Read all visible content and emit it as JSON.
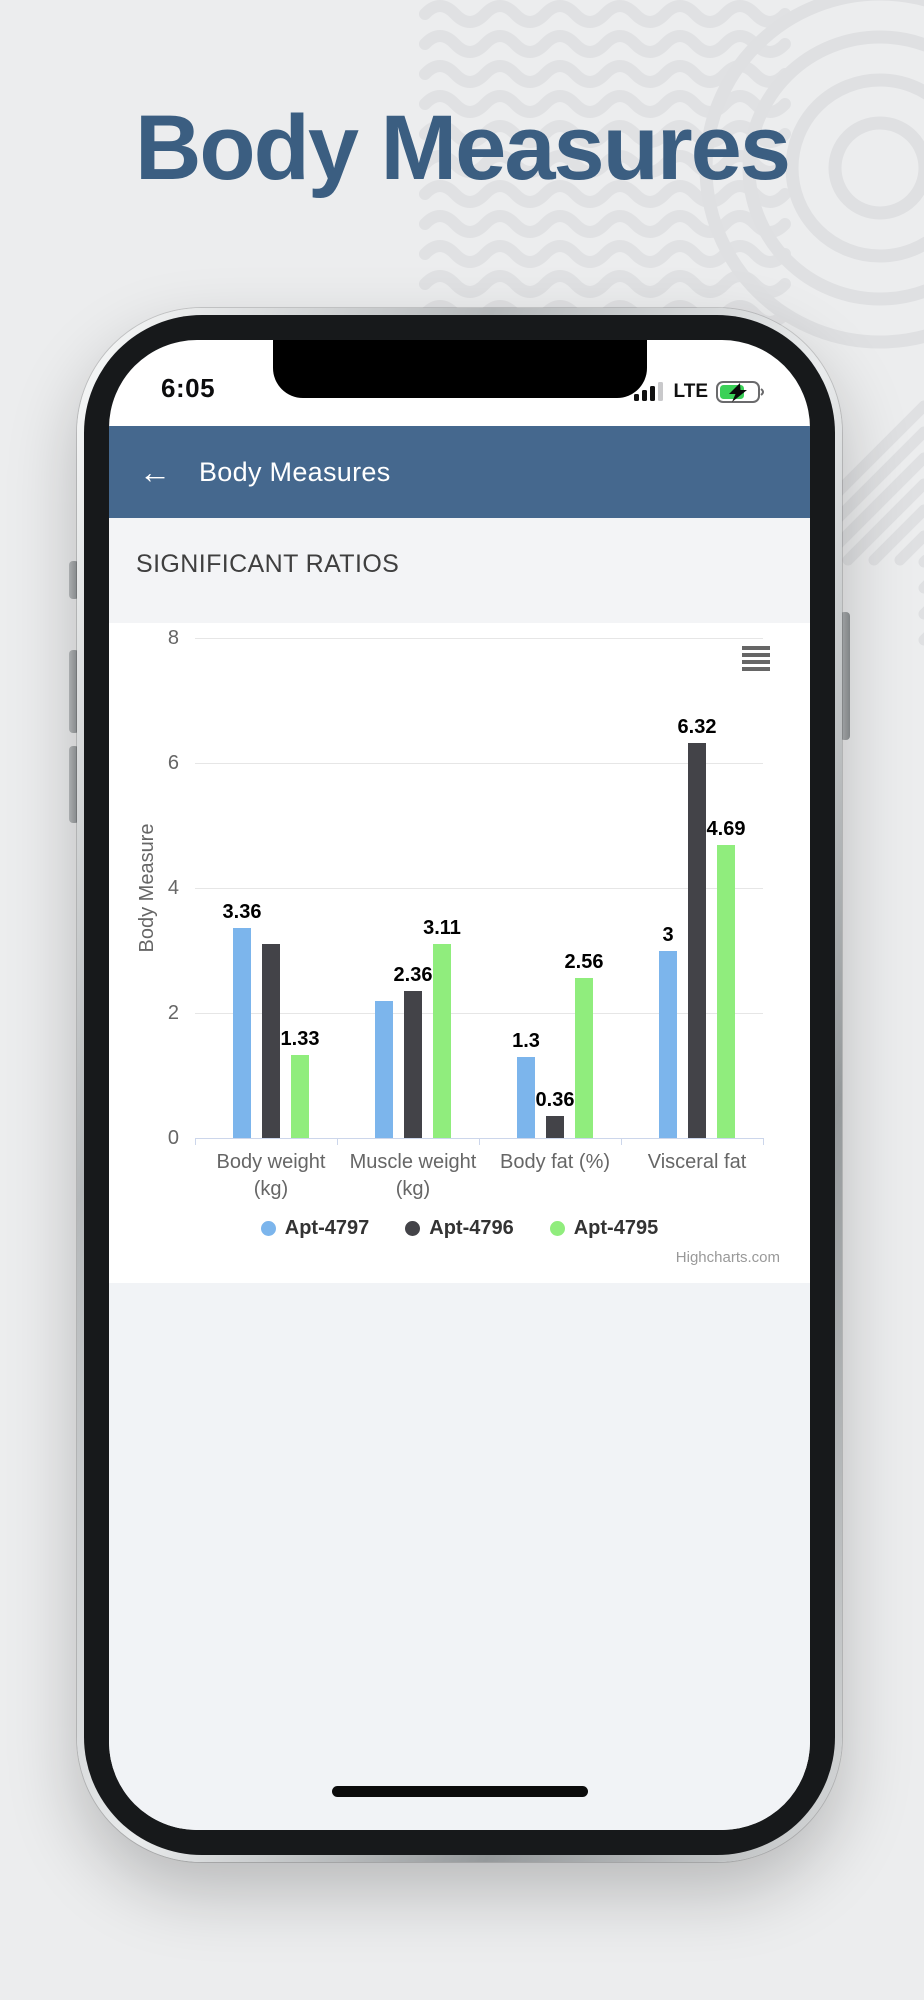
{
  "page": {
    "title": "Body Measures"
  },
  "status_bar": {
    "time": "6:05",
    "network": "LTE"
  },
  "nav": {
    "title": "Body Measures",
    "back_glyph": "←"
  },
  "section": {
    "heading": "SIGNIFICANT RATIOS"
  },
  "chart_data": {
    "type": "bar",
    "categories": [
      "Body weight (kg)",
      "Muscle weight (kg)",
      "Body fat (%)",
      "Visceral fat"
    ],
    "categories_lines": [
      [
        "Body weight",
        "(kg)"
      ],
      [
        "Muscle weight",
        "(kg)"
      ],
      [
        "Body fat (%)"
      ],
      [
        "Visceral fat"
      ]
    ],
    "series": [
      {
        "name": "Apt-4797",
        "color": "#7cb5ec",
        "values": [
          3.36,
          2.2,
          1.3,
          3
        ]
      },
      {
        "name": "Apt-4796",
        "color": "#434348",
        "values": [
          3.1,
          2.36,
          0.36,
          6.32
        ]
      },
      {
        "name": "Apt-4795",
        "color": "#90ed7d",
        "values": [
          1.33,
          3.11,
          2.56,
          4.69
        ]
      }
    ],
    "data_labels": [
      [
        "3.36",
        null,
        "1.33"
      ],
      [
        null,
        "2.36",
        "3.11"
      ],
      [
        "1.3",
        "0.36",
        "2.56"
      ],
      [
        "3",
        "6.32",
        "4.69"
      ]
    ],
    "ylabel": "Body Measure",
    "yticks": [
      0,
      2,
      4,
      6,
      8
    ],
    "ylim": [
      0,
      8
    ],
    "grid": true,
    "legend_position": "bottom",
    "credit": "Highcharts.com"
  },
  "colors": {
    "title_blue": "#3b5e81",
    "nav_bar": "#45688e",
    "battery_charge": "#3bd158",
    "grid": "#e6e6e6",
    "axis": "#ccd6eb"
  }
}
